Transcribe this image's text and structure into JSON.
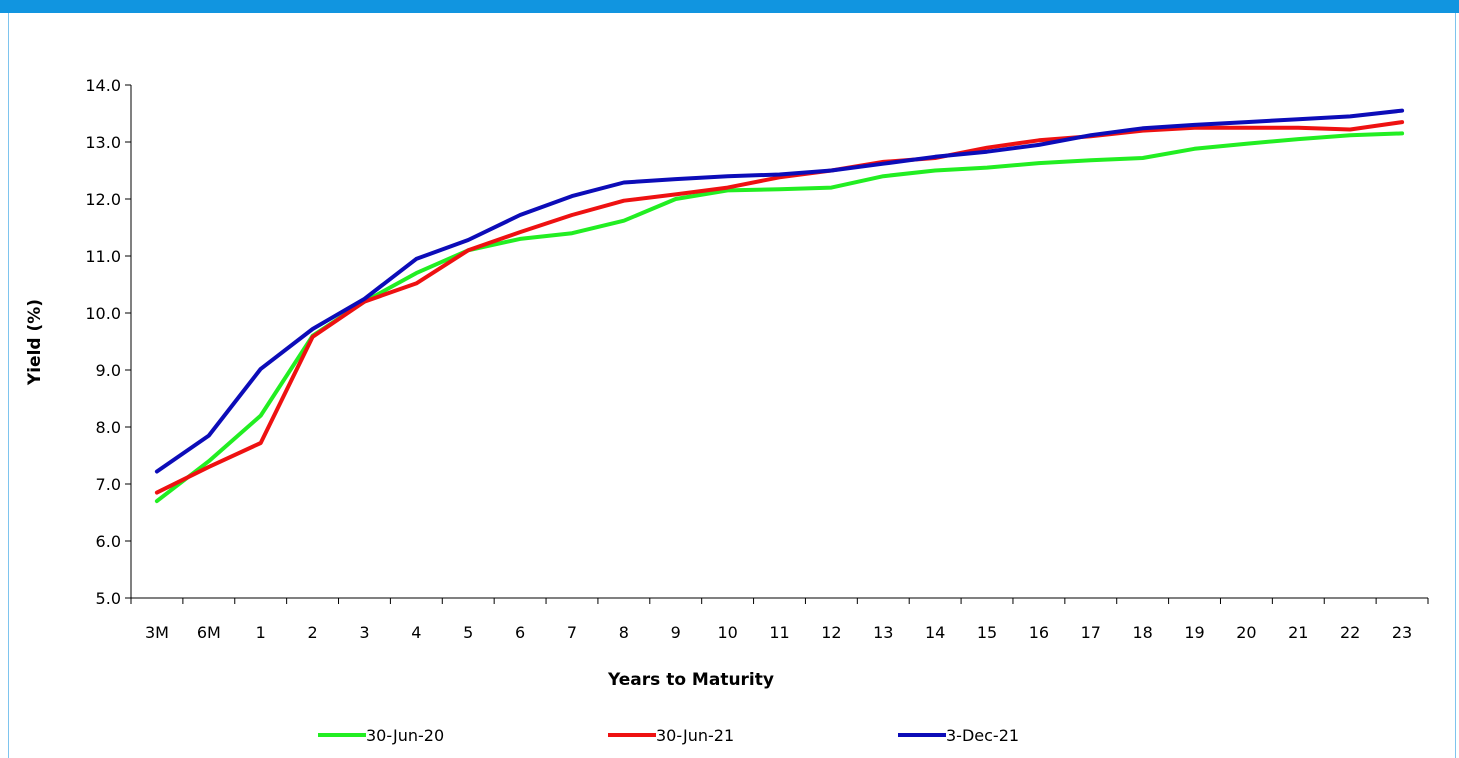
{
  "theme": {
    "band_color": "#1195e0",
    "rule_color": "#7ec4ee",
    "axis_color": "#000000"
  },
  "chart_data": {
    "type": "line",
    "title": "",
    "xlabel": "Years to Maturity",
    "ylabel": "Yield (%)",
    "ylim": [
      5.0,
      14.0
    ],
    "ytick_step": 1.0,
    "yticks": [
      "5.0",
      "6.0",
      "7.0",
      "8.0",
      "9.0",
      "10.0",
      "11.0",
      "12.0",
      "13.0",
      "14.0"
    ],
    "categories": [
      "3M",
      "6M",
      "1",
      "2",
      "3",
      "4",
      "5",
      "6",
      "7",
      "8",
      "9",
      "10",
      "11",
      "12",
      "13",
      "14",
      "15",
      "16",
      "17",
      "18",
      "19",
      "20",
      "21",
      "22",
      "23"
    ],
    "grid": false,
    "legend_position": "bottom",
    "series": [
      {
        "name": "30-Jun-20",
        "color": "#22ee22",
        "values": [
          6.7,
          7.4,
          8.2,
          9.6,
          10.2,
          10.7,
          11.1,
          11.3,
          11.4,
          11.62,
          12.0,
          12.15,
          12.17,
          12.2,
          12.4,
          12.5,
          12.55,
          12.63,
          12.68,
          12.72,
          12.88,
          12.97,
          13.05,
          13.12,
          13.15
        ]
      },
      {
        "name": "30-Jun-21",
        "color": "#ee1111",
        "values": [
          6.85,
          7.3,
          7.72,
          9.58,
          10.2,
          10.52,
          11.1,
          11.42,
          11.72,
          11.97,
          12.08,
          12.2,
          12.38,
          12.5,
          12.65,
          12.72,
          12.9,
          13.03,
          13.1,
          13.2,
          13.25,
          13.25,
          13.25,
          13.22,
          13.35
        ]
      },
      {
        "name": "3-Dec-21",
        "color": "#0c0cb8",
        "values": [
          7.22,
          7.85,
          9.02,
          9.72,
          10.25,
          10.95,
          11.28,
          11.72,
          12.05,
          12.29,
          12.35,
          12.4,
          12.43,
          12.5,
          12.62,
          12.74,
          12.83,
          12.95,
          13.12,
          13.24,
          13.3,
          13.35,
          13.4,
          13.45,
          13.55
        ]
      }
    ]
  }
}
